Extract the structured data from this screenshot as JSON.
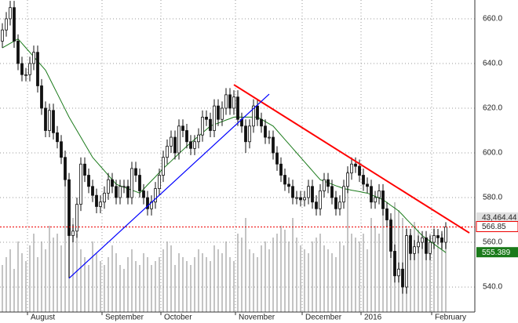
{
  "chart_data": {
    "type": "candlestick",
    "categories": [
      null,
      null,
      null,
      null,
      null,
      null,
      null,
      null,
      "August",
      null,
      null,
      null,
      null,
      null,
      null,
      null,
      null,
      null,
      null,
      null,
      null,
      null,
      null,
      null,
      null,
      null,
      null,
      "September",
      null,
      null,
      null,
      null,
      null,
      null,
      null,
      null,
      null,
      null,
      null,
      null,
      null,
      null,
      "October",
      null,
      null,
      null,
      null,
      null,
      null,
      null,
      null,
      null,
      null,
      null,
      null,
      null,
      null,
      null,
      null,
      null,
      null,
      "November",
      null,
      null,
      null,
      null,
      null,
      null,
      null,
      null,
      null,
      null,
      null,
      null,
      null,
      null,
      null,
      null,
      "December",
      null,
      null,
      null,
      null,
      null,
      null,
      null,
      null,
      null,
      null,
      null,
      null,
      null,
      null,
      "2016",
      null,
      null,
      null,
      null,
      null,
      null,
      null,
      null,
      null,
      null,
      null,
      null,
      null,
      null,
      null,
      null,
      null,
      "February",
      null,
      null,
      null,
      null,
      null,
      null,
      null,
      null
    ],
    "open": [
      650,
      655,
      660,
      665,
      650,
      640,
      635,
      635,
      640,
      645,
      630,
      620,
      610,
      619,
      609,
      605,
      598,
      588,
      563,
      565,
      577,
      595,
      590,
      585,
      581,
      576,
      578,
      582,
      588,
      585,
      580,
      585,
      585,
      580,
      593,
      590,
      583,
      580,
      575,
      578,
      584,
      590,
      598,
      603,
      607,
      600,
      612,
      610,
      605,
      602,
      605,
      608,
      616,
      615,
      610,
      621,
      615,
      620,
      626,
      620,
      625,
      615,
      612,
      605,
      612,
      621,
      615,
      612,
      607,
      607,
      600,
      595,
      590,
      586,
      585,
      580,
      580,
      579,
      580,
      585,
      578,
      575,
      583,
      588,
      585,
      580,
      575,
      578,
      585,
      591,
      595,
      594,
      590,
      586,
      585,
      578,
      580,
      583,
      575,
      570,
      556,
      545,
      548,
      540,
      563,
      555,
      558,
      560,
      562,
      555,
      560,
      563,
      562,
      560,
      null,
      null,
      null,
      null,
      null,
      null
    ],
    "high": [
      658,
      663,
      668,
      668,
      653,
      643,
      638,
      643,
      648,
      648,
      633,
      623,
      622,
      622,
      612,
      608,
      601,
      591,
      568,
      580,
      598,
      598,
      593,
      588,
      584,
      581,
      585,
      591,
      591,
      588,
      588,
      588,
      588,
      596,
      596,
      593,
      586,
      583,
      581,
      587,
      593,
      601,
      606,
      610,
      610,
      615,
      615,
      613,
      608,
      608,
      611,
      619,
      619,
      618,
      624,
      624,
      623,
      629,
      629,
      628,
      628,
      618,
      615,
      615,
      624,
      624,
      618,
      615,
      610,
      610,
      603,
      598,
      593,
      589,
      588,
      583,
      583,
      583,
      588,
      588,
      581,
      586,
      591,
      591,
      588,
      583,
      581,
      588,
      594,
      598,
      598,
      597,
      593,
      589,
      588,
      583,
      586,
      586,
      578,
      573,
      559,
      551,
      551,
      566,
      566,
      561,
      563,
      565,
      565,
      563,
      566,
      566,
      565,
      569,
      null,
      null,
      null,
      null,
      null,
      null
    ],
    "low": [
      647,
      652,
      657,
      647,
      637,
      632,
      632,
      632,
      637,
      627,
      617,
      607,
      607,
      606,
      602,
      595,
      585,
      544,
      560,
      562,
      574,
      587,
      582,
      578,
      573,
      573,
      575,
      579,
      582,
      577,
      577,
      582,
      577,
      577,
      587,
      580,
      577,
      572,
      572,
      575,
      581,
      587,
      595,
      600,
      597,
      597,
      607,
      602,
      599,
      599,
      602,
      605,
      612,
      607,
      607,
      612,
      612,
      617,
      617,
      617,
      612,
      609,
      600,
      602,
      609,
      612,
      609,
      604,
      604,
      597,
      592,
      587,
      583,
      582,
      577,
      577,
      576,
      576,
      577,
      575,
      572,
      572,
      580,
      582,
      577,
      572,
      572,
      575,
      582,
      588,
      591,
      587,
      583,
      582,
      575,
      575,
      577,
      572,
      567,
      553,
      542,
      542,
      537,
      537,
      552,
      552,
      555,
      557,
      552,
      552,
      557,
      559,
      557,
      557,
      null,
      null,
      null,
      null,
      null,
      null
    ],
    "close": [
      655,
      660,
      665,
      650,
      640,
      635,
      635,
      640,
      645,
      630,
      620,
      610,
      619,
      609,
      605,
      598,
      588,
      563,
      565,
      577,
      595,
      590,
      585,
      581,
      576,
      578,
      582,
      588,
      585,
      580,
      585,
      585,
      580,
      593,
      590,
      583,
      580,
      575,
      578,
      584,
      590,
      598,
      603,
      607,
      600,
      612,
      610,
      605,
      602,
      605,
      608,
      616,
      615,
      610,
      621,
      615,
      620,
      626,
      620,
      625,
      615,
      612,
      605,
      612,
      621,
      615,
      612,
      607,
      607,
      600,
      595,
      590,
      586,
      585,
      580,
      580,
      579,
      580,
      585,
      578,
      575,
      583,
      588,
      585,
      580,
      575,
      578,
      585,
      591,
      595,
      594,
      590,
      586,
      585,
      578,
      580,
      583,
      575,
      570,
      556,
      545,
      548,
      540,
      563,
      555,
      558,
      560,
      562,
      555,
      560,
      563,
      562,
      560,
      566.85,
      null,
      null,
      null,
      null,
      null,
      null
    ],
    "volume": [
      60,
      70,
      80,
      55,
      90,
      75,
      65,
      85,
      100,
      70,
      90,
      80,
      110,
      95,
      100,
      85,
      175,
      130,
      120,
      100,
      80,
      70,
      60,
      90,
      75,
      65,
      60,
      70,
      85,
      75,
      60,
      55,
      70,
      80,
      65,
      60,
      75,
      70,
      60,
      65,
      70,
      80,
      90,
      85,
      60,
      75,
      70,
      65,
      60,
      70,
      80,
      75,
      70,
      65,
      85,
      80,
      75,
      90,
      70,
      65,
      100,
      95,
      120,
      80,
      75,
      70,
      85,
      90,
      80,
      95,
      100,
      110,
      105,
      90,
      120,
      95,
      85,
      80,
      75,
      90,
      95,
      100,
      85,
      80,
      75,
      70,
      90,
      85,
      180,
      100,
      95,
      90,
      100,
      80,
      120,
      110,
      100,
      130,
      110,
      120,
      140,
      130,
      120,
      110,
      100,
      115,
      105,
      95,
      90,
      100,
      110,
      95,
      100,
      105,
      null,
      null,
      null,
      null,
      null,
      null
    ],
    "volume_label": "43,464.44",
    "ma": {
      "color": "#1a7a1a",
      "values": [
        647,
        648,
        649,
        650,
        651,
        649,
        647,
        645,
        643,
        641,
        639,
        637,
        633.5,
        630,
        626.5,
        623,
        619.5,
        616,
        613,
        610,
        607,
        604,
        601,
        598,
        596,
        594,
        592,
        590,
        588,
        586,
        585.3,
        584.7,
        584,
        583.3,
        582.7,
        582,
        583.8,
        585.7,
        587.5,
        589.3,
        591.2,
        593,
        594.7,
        596.3,
        598,
        599.7,
        601.3,
        603,
        604.5,
        606,
        607.5,
        609,
        610.5,
        612,
        612.7,
        613.3,
        614,
        614.7,
        615.3,
        616,
        616,
        616,
        616,
        616,
        616,
        616,
        615,
        614,
        613,
        612,
        610,
        608,
        606,
        604,
        602,
        600,
        598,
        596,
        594,
        592,
        590,
        588,
        587.3,
        586.7,
        586,
        585.3,
        584.7,
        584,
        583.7,
        583.3,
        583,
        582.7,
        582.3,
        582,
        581.3,
        580.5,
        579.8,
        579,
        577.8,
        576.5,
        575.3,
        574,
        572.2,
        570.3,
        568.5,
        566.7,
        564.8,
        563,
        561.7,
        560.5,
        559.2,
        557.9,
        556.7,
        555.389,
        null,
        null,
        null,
        null,
        null,
        null
      ]
    },
    "trend_lines": [
      {
        "color": "#ff0000",
        "from": [
          59,
          630.5
        ],
        "to": [
          119,
          564.2
        ]
      },
      {
        "color": "#0000ff",
        "from": [
          17,
          543.9
        ],
        "to": [
          68,
          626.3
        ]
      }
    ],
    "ylim": [
      528.8,
      668.4
    ],
    "yticks": [
      {
        "value": 540,
        "label": "540.0"
      },
      {
        "value": 560,
        "label": "560.0"
      },
      {
        "value": 580,
        "label": "580.0"
      },
      {
        "value": 600,
        "label": "600.0"
      },
      {
        "value": 620,
        "label": "620.0"
      },
      {
        "value": 640,
        "label": "640.0"
      },
      {
        "value": 660,
        "label": "660.0"
      }
    ],
    "grid": true
  }
}
